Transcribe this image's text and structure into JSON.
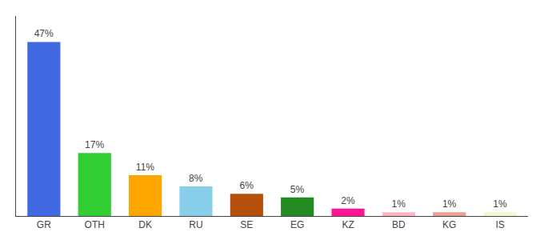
{
  "chart_data": {
    "type": "bar",
    "categories": [
      "GR",
      "OTH",
      "DK",
      "RU",
      "SE",
      "EG",
      "KZ",
      "BD",
      "KG",
      "IS"
    ],
    "values": [
      47,
      17,
      11,
      8,
      6,
      5,
      2,
      1,
      1,
      1
    ],
    "value_labels": [
      "47%",
      "17%",
      "11%",
      "8%",
      "6%",
      "5%",
      "2%",
      "1%",
      "1%",
      "1%"
    ],
    "colors": [
      "#4169e1",
      "#32cd32",
      "#ffa500",
      "#87ceeb",
      "#b5500a",
      "#228b22",
      "#ff1493",
      "#ffb6c1",
      "#e8a090",
      "#f5f5d0"
    ],
    "ylim": [
      0,
      54
    ],
    "yticks": [],
    "grid": false,
    "data_labels": true,
    "tick_labels": "x"
  }
}
